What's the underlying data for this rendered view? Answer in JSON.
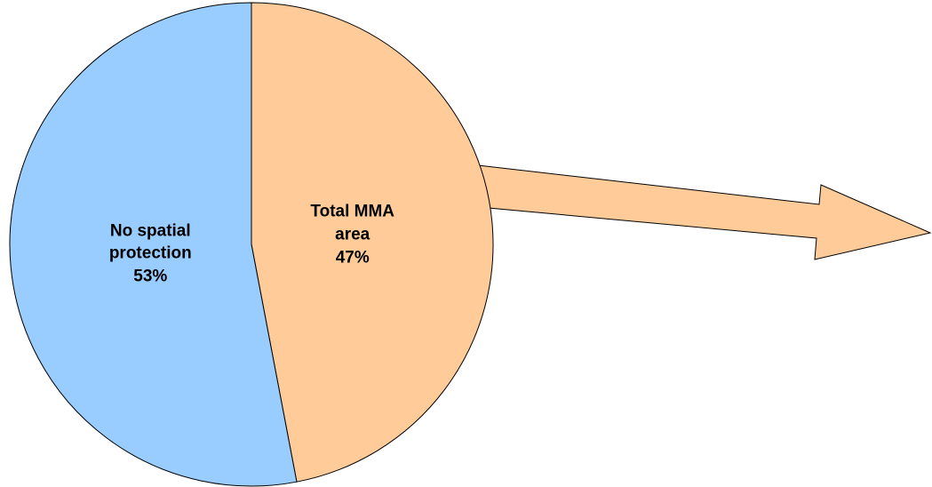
{
  "chart_data": {
    "type": "pie",
    "categories": [
      "Total MMA area",
      "No spatial protection"
    ],
    "values": [
      47,
      53
    ],
    "value_labels": [
      "47%",
      "53%"
    ],
    "colors": [
      "#ffcc99",
      "#99ccff"
    ]
  }
}
